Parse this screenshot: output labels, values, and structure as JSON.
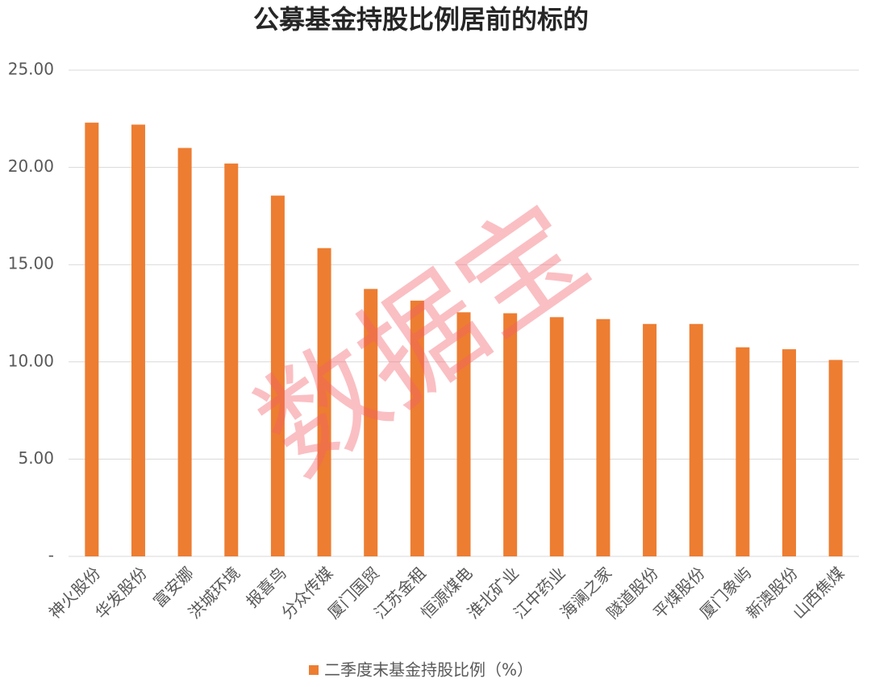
{
  "chart_data": {
    "type": "bar",
    "title": "公募基金持股比例居前的标的",
    "categories": [
      "神火股份",
      "华发股份",
      "富安娜",
      "洪城环境",
      "报喜鸟",
      "分众传媒",
      "厦门国贸",
      "江苏金租",
      "恒源煤电",
      "淮北矿业",
      "江中药业",
      "海澜之家",
      "隧道股份",
      "平煤股份",
      "厦门象屿",
      "新澳股份",
      "山西焦煤"
    ],
    "series": [
      {
        "name": "二季度末基金持股比例（%）",
        "color": "#ed7d31",
        "values": [
          22.3,
          22.2,
          21.0,
          20.2,
          18.55,
          15.85,
          13.75,
          13.15,
          12.55,
          12.5,
          12.3,
          12.2,
          11.95,
          11.95,
          10.75,
          10.65,
          10.1
        ]
      }
    ],
    "ylim": [
      0,
      25
    ],
    "yticks": [
      {
        "value": 0,
        "label": "-"
      },
      {
        "value": 5,
        "label": "5.00"
      },
      {
        "value": 10,
        "label": "10.00"
      },
      {
        "value": 15,
        "label": "15.00"
      },
      {
        "value": 20,
        "label": "20.00"
      },
      {
        "value": 25,
        "label": "25.00"
      }
    ],
    "grid": true,
    "legend": "bottom",
    "watermark": "数据宝"
  }
}
